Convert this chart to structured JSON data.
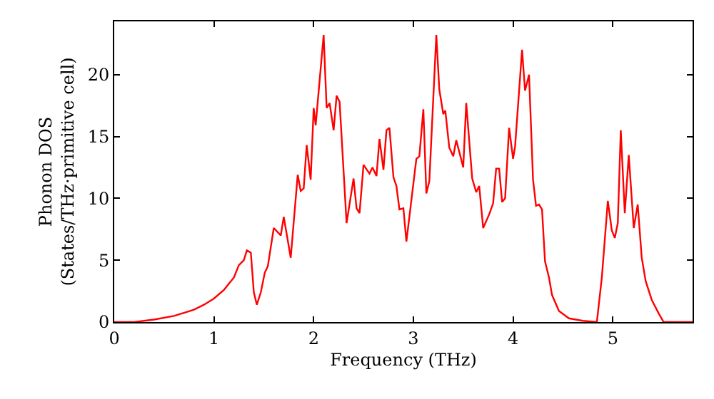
{
  "chart_data": {
    "type": "line",
    "xlabel": "Frequency (THz)",
    "ylabel": "Phonon DOS\n(States/THz·primitive cell)",
    "xlim": [
      0,
      5.8
    ],
    "ylim": [
      0,
      24.3
    ],
    "xticks": [
      0,
      1,
      2,
      3,
      4,
      5
    ],
    "yticks": [
      0,
      5,
      10,
      15,
      20
    ],
    "marker": "none",
    "line_style": "solid",
    "series": [
      {
        "color": "#ff0000",
        "x": [
          0,
          0.2,
          0.4,
          0.6,
          0.8,
          0.9,
          1.0,
          1.1,
          1.2,
          1.25,
          1.3,
          1.33,
          1.37,
          1.4,
          1.43,
          1.47,
          1.51,
          1.54,
          1.6,
          1.67,
          1.7,
          1.77,
          1.84,
          1.87,
          1.9,
          1.93,
          1.97,
          2.0,
          2.02,
          2.1,
          2.13,
          2.16,
          2.2,
          2.23,
          2.26,
          2.33,
          2.4,
          2.43,
          2.46,
          2.5,
          2.56,
          2.59,
          2.63,
          2.66,
          2.7,
          2.73,
          2.76,
          2.8,
          2.83,
          2.86,
          2.9,
          2.93,
          3.03,
          3.06,
          3.1,
          3.13,
          3.16,
          3.23,
          3.26,
          3.3,
          3.32,
          3.36,
          3.4,
          3.43,
          3.5,
          3.53,
          3.59,
          3.63,
          3.66,
          3.7,
          3.76,
          3.8,
          3.83,
          3.86,
          3.89,
          3.92,
          3.96,
          4.0,
          4.02,
          4.09,
          4.12,
          4.16,
          4.2,
          4.23,
          4.26,
          4.29,
          4.32,
          4.36,
          4.39,
          4.46,
          4.56,
          4.7,
          4.84,
          4.89,
          4.95,
          4.99,
          5.02,
          5.05,
          5.08,
          5.12,
          5.16,
          5.21,
          5.25,
          5.29,
          5.33,
          5.39,
          5.46,
          5.51,
          5.8
        ],
        "values": [
          0,
          0.0,
          0.2,
          0.5,
          1.0,
          1.4,
          1.9,
          2.6,
          3.6,
          4.6,
          5.0,
          5.8,
          5.6,
          2.4,
          1.4,
          2.4,
          4.0,
          4.5,
          7.6,
          7.0,
          8.5,
          5.2,
          11.9,
          10.6,
          10.8,
          14.3,
          11.5,
          17.3,
          15.9,
          23.2,
          17.3,
          17.7,
          15.5,
          18.3,
          17.8,
          8.0,
          11.6,
          9.2,
          8.8,
          12.7,
          12.0,
          12.5,
          11.8,
          14.8,
          12.3,
          15.5,
          15.7,
          11.7,
          11.0,
          9.1,
          9.2,
          6.5,
          13.2,
          13.4,
          17.2,
          10.4,
          11.4,
          23.2,
          18.8,
          16.8,
          17.1,
          14.1,
          13.4,
          14.7,
          12.5,
          17.7,
          11.6,
          10.5,
          11.0,
          7.6,
          8.7,
          9.6,
          12.4,
          12.4,
          9.7,
          10.0,
          15.7,
          13.2,
          14.2,
          22.0,
          18.7,
          20.0,
          11.5,
          9.4,
          9.5,
          9.1,
          4.9,
          3.6,
          2.2,
          0.9,
          0.3,
          0.1,
          0,
          3.6,
          9.8,
          7.4,
          6.8,
          8.0,
          15.5,
          8.8,
          13.5,
          7.6,
          9.5,
          5.2,
          3.3,
          1.8,
          0.7,
          0,
          0
        ]
      }
    ]
  }
}
